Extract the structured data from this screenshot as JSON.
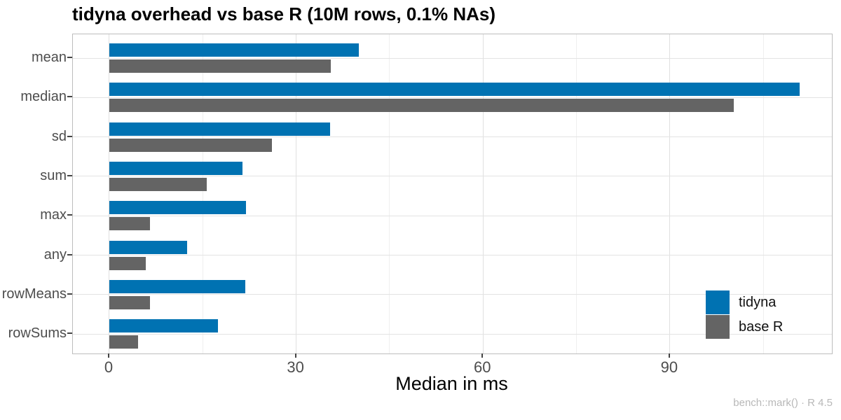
{
  "chart_data": {
    "type": "bar",
    "orientation": "horizontal",
    "title": "tidyna overhead vs base R (10M rows, 0.1% NAs)",
    "xlabel": "Median in ms",
    "caption": "bench::mark() · R 4.5",
    "categories": [
      "mean",
      "median",
      "sd",
      "sum",
      "max",
      "any",
      "rowMeans",
      "rowSums"
    ],
    "series": [
      {
        "name": "tidyna",
        "color": "#0072B2",
        "values": [
          40.0,
          110.8,
          35.4,
          21.4,
          21.9,
          12.5,
          21.8,
          17.4
        ]
      },
      {
        "name": "base R",
        "color": "#646464",
        "values": [
          35.6,
          100.2,
          26.1,
          15.6,
          6.5,
          5.8,
          6.5,
          4.6
        ]
      }
    ],
    "x_ticks": [
      0,
      30,
      60,
      90
    ],
    "x_minor_ticks": [
      15,
      45,
      75,
      105
    ],
    "xlim": [
      -5.85,
      116.0
    ],
    "grid": true,
    "legend_position": "inside-right"
  },
  "colors": {
    "panel_border": "#bdbdbd",
    "grid_major": "#e0e0e0",
    "grid_minor": "#efefef",
    "axis_text": "#4d4d4d",
    "tick_mark": "#444444",
    "title_text": "#000000",
    "caption_text": "#b8b8b8"
  }
}
